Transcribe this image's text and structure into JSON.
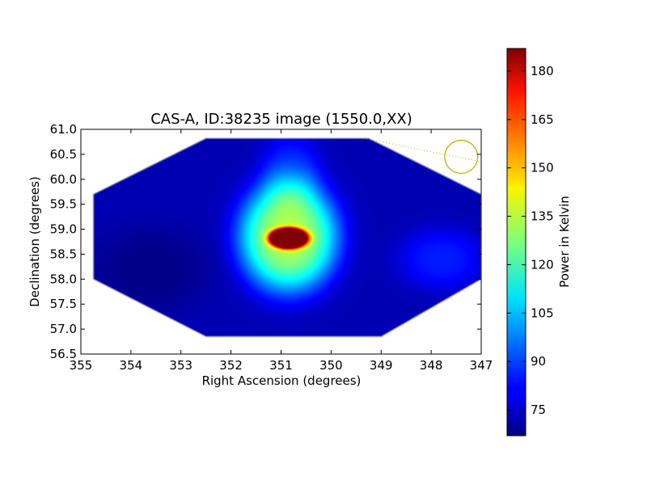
{
  "chart_data": {
    "type": "heatmap",
    "title": "CAS-A, ID:38235 image (1550.0,XX)",
    "xlabel": "Right Ascension (degrees)",
    "ylabel": "Declination (degrees)",
    "xlim": [
      355,
      347
    ],
    "ylim": [
      56.5,
      61.0
    ],
    "x_ticks": [
      355,
      354,
      353,
      352,
      351,
      350,
      349,
      348,
      347
    ],
    "y_ticks": [
      "56.5",
      "57.0",
      "57.5",
      "58.0",
      "58.5",
      "59.0",
      "59.5",
      "60.0",
      "60.5",
      "61.0"
    ],
    "colorbar": {
      "label": "Power in Kelvin",
      "range": [
        67,
        187
      ],
      "ticks": [
        75,
        90,
        105,
        120,
        135,
        150,
        165,
        180
      ],
      "colormap": "jet"
    },
    "field_outline": [
      [
        354.75,
        59.7
      ],
      [
        352.5,
        60.82
      ],
      [
        349.25,
        60.82
      ],
      [
        347,
        59.7
      ],
      [
        347,
        58.0
      ],
      [
        349.0,
        56.85
      ],
      [
        352.5,
        56.85
      ],
      [
        354.75,
        58.0
      ]
    ],
    "background_level": 73,
    "sources": [
      {
        "ra": 350.85,
        "dec": 58.82,
        "peak": 187,
        "sigma_ra": 0.28,
        "sigma_dec": 0.15
      },
      {
        "ra": 350.85,
        "dec": 58.85,
        "peak": 60,
        "sigma_ra": 0.8,
        "sigma_dec": 0.9
      },
      {
        "ra": 350.8,
        "dec": 60.2,
        "peak": 12,
        "sigma_ra": 0.5,
        "sigma_dec": 0.6
      },
      {
        "ra": 347.8,
        "dec": 58.4,
        "peak": 12,
        "sigma_ra": 0.7,
        "sigma_dec": 0.5
      },
      {
        "ra": 353.6,
        "dec": 58.2,
        "peak": -5,
        "sigma_ra": 1.0,
        "sigma_dec": 0.7
      }
    ],
    "overlay": {
      "circle": {
        "ra": 347.4,
        "dec": 60.45,
        "radius_deg": 0.33
      },
      "dotted_line": [
        [
          349.35,
          60.82
        ],
        [
          347,
          60.35
        ]
      ],
      "color": "#b8b800"
    }
  }
}
